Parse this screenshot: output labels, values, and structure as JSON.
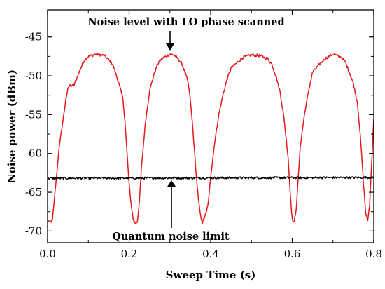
{
  "chart_data": {
    "type": "line",
    "title": "",
    "xlabel": "Sweep Time (s)",
    "ylabel": "Noise power (dBm)",
    "xlim": [
      0.0,
      0.8
    ],
    "ylim": [
      -71.5,
      -41.5
    ],
    "xticks": [
      0.0,
      0.2,
      0.4,
      0.6,
      0.8
    ],
    "xtick_labels": [
      "0.0",
      "0.2",
      "0.4",
      "0.6",
      "0.8"
    ],
    "yticks": [
      -70,
      -65,
      -60,
      -55,
      -50,
      -45
    ],
    "ytick_labels": [
      "-70",
      "-65",
      "-60",
      "-55",
      "-50",
      "-45"
    ],
    "grid": false,
    "legend": false,
    "series": [
      {
        "color": "#e8171c",
        "x": [
          0.0,
          0.005,
          0.012,
          0.02,
          0.03,
          0.04,
          0.045,
          0.05,
          0.055,
          0.065,
          0.08,
          0.09,
          0.1,
          0.12,
          0.14,
          0.16,
          0.175,
          0.18,
          0.185,
          0.19,
          0.195,
          0.2,
          0.205,
          0.21,
          0.215,
          0.22,
          0.225,
          0.23,
          0.24,
          0.25,
          0.255,
          0.26,
          0.27,
          0.28,
          0.3,
          0.31,
          0.32,
          0.33,
          0.34,
          0.345,
          0.35,
          0.355,
          0.36,
          0.365,
          0.37,
          0.375,
          0.38,
          0.39,
          0.395,
          0.4,
          0.41,
          0.42,
          0.43,
          0.44,
          0.45,
          0.48,
          0.5,
          0.52,
          0.54,
          0.55,
          0.56,
          0.57,
          0.58,
          0.59,
          0.595,
          0.6,
          0.605,
          0.61,
          0.615,
          0.62,
          0.63,
          0.64,
          0.65,
          0.68,
          0.7,
          0.72,
          0.73,
          0.74,
          0.75,
          0.76,
          0.765,
          0.77,
          0.775,
          0.78,
          0.785,
          0.79,
          0.795,
          0.8
        ],
        "y": [
          -68.5,
          -68.9,
          -68.6,
          -64.0,
          -58.5,
          -55.0,
          -53.0,
          -51.5,
          -51.3,
          -51.2,
          -49.2,
          -48.0,
          -47.5,
          -47.2,
          -47.4,
          -48.5,
          -51.0,
          -52.0,
          -53.0,
          -56.0,
          -60.0,
          -64.0,
          -66.5,
          -68.5,
          -69.0,
          -68.8,
          -66.5,
          -62.0,
          -56.0,
          -52.0,
          -51.0,
          -50.0,
          -48.5,
          -47.8,
          -47.2,
          -47.3,
          -47.8,
          -48.5,
          -50.0,
          -51.0,
          -53.0,
          -56.0,
          -59.5,
          -63.0,
          -66.0,
          -68.0,
          -68.9,
          -67.5,
          -66.0,
          -63.0,
          -58.5,
          -55.0,
          -52.5,
          -50.5,
          -49.0,
          -47.6,
          -47.3,
          -47.4,
          -47.8,
          -48.5,
          -50.0,
          -52.0,
          -55.5,
          -60.5,
          -65.0,
          -68.5,
          -68.9,
          -67.0,
          -63.0,
          -59.0,
          -55.0,
          -52.0,
          -49.5,
          -47.8,
          -47.2,
          -47.6,
          -48.2,
          -49.5,
          -51.0,
          -53.5,
          -56.5,
          -60.0,
          -64.0,
          -67.5,
          -68.8,
          -66.5,
          -61.0,
          -55.5
        ]
      },
      {
        "color": "#000000",
        "x": [
          0.0,
          0.8
        ],
        "y": [
          -63.2,
          -63.1
        ]
      }
    ],
    "annotations": [
      {
        "text": "Noise level with LO phase scanned",
        "x": 0.3,
        "y": -47.1
      },
      {
        "text": "Quantum noise limit",
        "x": 0.3,
        "y": -63.3
      }
    ]
  }
}
